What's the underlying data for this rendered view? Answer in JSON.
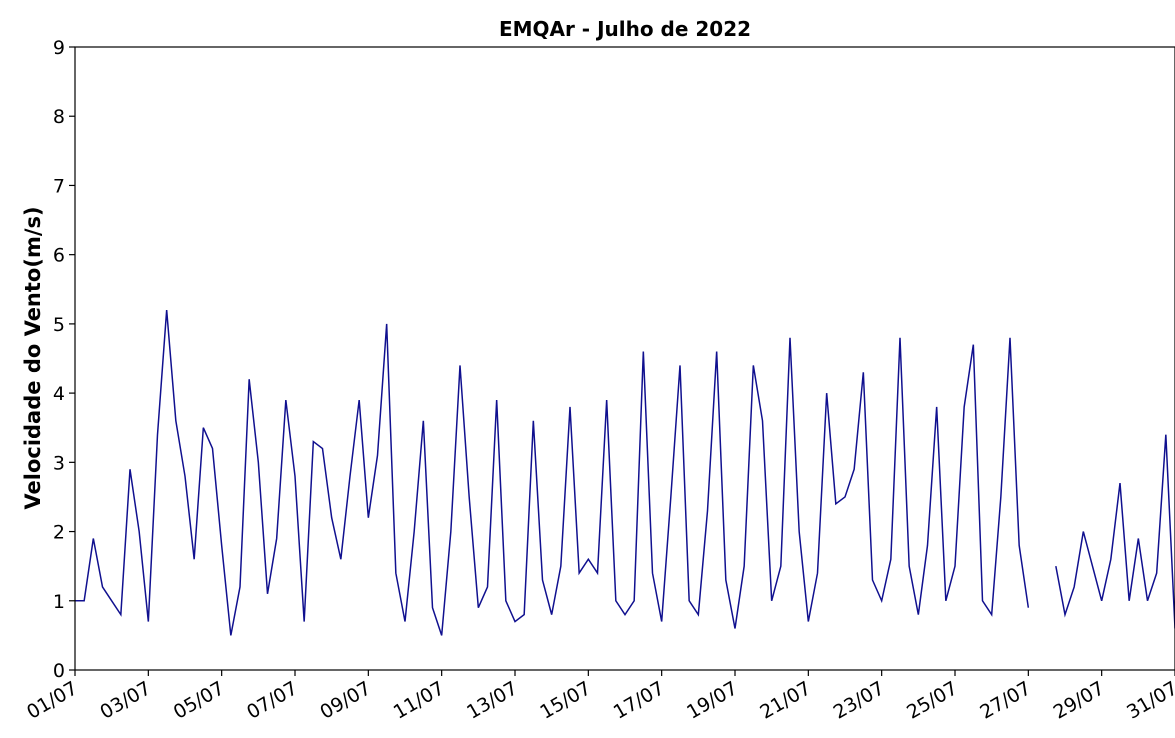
{
  "chart_data": {
    "type": "line",
    "title": "EMQAr - Julho de  2022",
    "ylabel": "Velocidade do Vento(m/s)",
    "xlim": [
      1,
      31
    ],
    "ylim": [
      0,
      9
    ],
    "yticks": [
      0,
      1,
      2,
      3,
      4,
      5,
      6,
      7,
      8,
      9
    ],
    "xticks": [
      {
        "value": 1,
        "label": "01/07"
      },
      {
        "value": 3,
        "label": "03/07"
      },
      {
        "value": 5,
        "label": "05/07"
      },
      {
        "value": 7,
        "label": "07/07"
      },
      {
        "value": 9,
        "label": "09/07"
      },
      {
        "value": 11,
        "label": "11/07"
      },
      {
        "value": 13,
        "label": "13/07"
      },
      {
        "value": 15,
        "label": "15/07"
      },
      {
        "value": 17,
        "label": "17/07"
      },
      {
        "value": 19,
        "label": "19/07"
      },
      {
        "value": 21,
        "label": "21/07"
      },
      {
        "value": 23,
        "label": "23/07"
      },
      {
        "value": 25,
        "label": "25/07"
      },
      {
        "value": 27,
        "label": "27/07"
      },
      {
        "value": 29,
        "label": "29/07"
      },
      {
        "value": 31,
        "label": "31/07"
      }
    ],
    "x": [
      1,
      1.25,
      1.5,
      1.75,
      2,
      2.25,
      2.5,
      2.75,
      3,
      3.25,
      3.5,
      3.75,
      4,
      4.25,
      4.5,
      4.75,
      5,
      5.25,
      5.5,
      5.75,
      6,
      6.25,
      6.5,
      6.75,
      7,
      7.25,
      7.5,
      7.75,
      8,
      8.25,
      8.5,
      8.75,
      9,
      9.25,
      9.5,
      9.75,
      10,
      10.25,
      10.5,
      10.75,
      11,
      11.25,
      11.5,
      11.75,
      12,
      12.25,
      12.5,
      12.75,
      13,
      13.25,
      13.5,
      13.75,
      14,
      14.25,
      14.5,
      14.75,
      15,
      15.25,
      15.5,
      15.75,
      16,
      16.25,
      16.5,
      16.75,
      17,
      17.25,
      17.5,
      17.75,
      18,
      18.25,
      18.5,
      18.75,
      19,
      19.25,
      19.5,
      19.75,
      20,
      20.25,
      20.5,
      20.75,
      21,
      21.25,
      21.5,
      21.75,
      22,
      22.25,
      22.5,
      22.75,
      23,
      23.25,
      23.5,
      23.75,
      24,
      24.25,
      24.5,
      24.75,
      25,
      25.25,
      25.5,
      25.75,
      26,
      26.25,
      26.5,
      26.75,
      27,
      27.25,
      27.5,
      27.75,
      28,
      28.25,
      28.5,
      28.75,
      29,
      29.25,
      29.5,
      29.75,
      30,
      30.25,
      30.5,
      30.75,
      31
    ],
    "series": [
      {
        "name": "Velocidade do Vento",
        "color": "#10108f",
        "values": [
          1.0,
          1.0,
          1.9,
          1.2,
          1.0,
          0.8,
          2.9,
          2.0,
          0.7,
          3.4,
          5.2,
          3.6,
          2.8,
          1.6,
          3.5,
          3.2,
          1.8,
          0.5,
          1.2,
          4.2,
          3.0,
          1.1,
          1.9,
          3.9,
          2.8,
          0.7,
          3.3,
          3.2,
          2.2,
          1.6,
          2.8,
          3.9,
          2.2,
          3.1,
          5.0,
          1.4,
          0.7,
          2.0,
          3.6,
          0.9,
          0.5,
          2.0,
          4.4,
          2.5,
          0.9,
          1.2,
          3.9,
          1.0,
          0.7,
          0.8,
          3.6,
          1.3,
          0.8,
          1.5,
          3.8,
          1.4,
          1.6,
          1.4,
          3.9,
          1.0,
          0.8,
          1.0,
          4.6,
          1.4,
          0.7,
          2.5,
          4.4,
          1.0,
          0.8,
          2.3,
          4.6,
          1.3,
          0.6,
          1.5,
          4.4,
          3.6,
          1.0,
          1.5,
          4.8,
          2.0,
          0.7,
          1.4,
          4.0,
          2.4,
          2.5,
          2.9,
          4.3,
          1.3,
          1.0,
          1.6,
          4.8,
          1.5,
          0.8,
          1.8,
          3.8,
          1.0,
          1.5,
          3.8,
          4.7,
          1.0,
          0.8,
          2.5,
          4.8,
          1.8,
          0.9,
          null,
          null,
          1.5,
          0.8,
          1.2,
          2.0,
          1.5,
          1.0,
          1.6,
          2.7,
          1.0,
          1.9,
          1.0,
          1.4,
          3.4,
          0.6
        ]
      }
    ]
  }
}
